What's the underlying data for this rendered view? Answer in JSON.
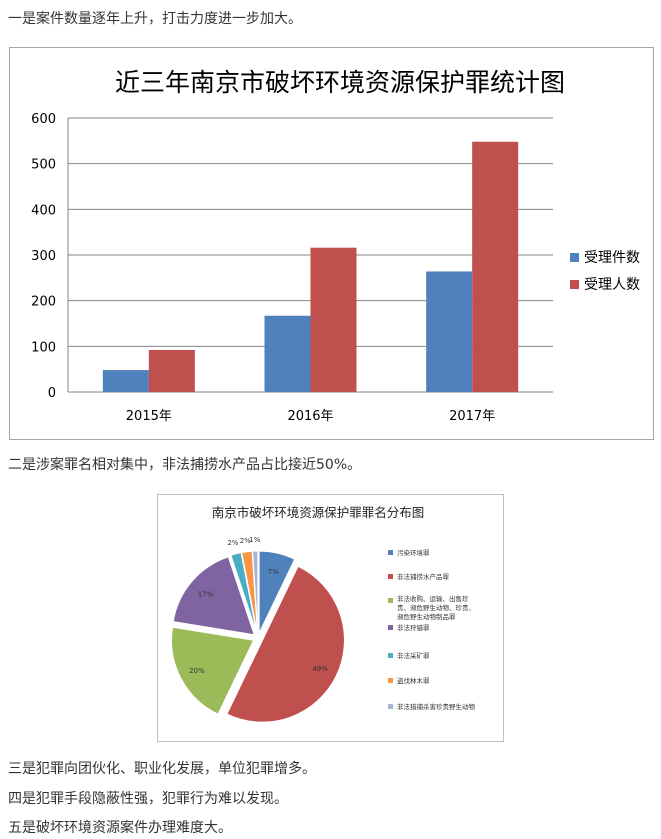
{
  "paragraphs": {
    "p1": "一是案件数量逐年上升，打击力度进一步加大。",
    "p2": "二是涉案罪名相对集中，非法捕捞水产品占比接近50%。",
    "p3": "三是犯罪向团伙化、职业化发展，单位犯罪增多。",
    "p4": "四是犯罪手段隐蔽性强，犯罪行为难以发现。",
    "p5": "五是破坏环境资源案件办理难度大。"
  },
  "chart_data": [
    {
      "type": "bar",
      "title": "近三年南京市破坏环境资源保护罪统计图",
      "categories": [
        "2015年",
        "2016年",
        "2017年"
      ],
      "series": [
        {
          "name": "受理件数",
          "values": [
            48,
            167,
            264
          ],
          "color": "#4f81bd"
        },
        {
          "name": "受理人数",
          "values": [
            92,
            316,
            548
          ],
          "color": "#c0504d"
        }
      ],
      "ylim": [
        0,
        600
      ],
      "yticks": [
        0,
        100,
        200,
        300,
        400,
        500,
        600
      ],
      "grid": true,
      "legend": "right"
    },
    {
      "type": "pie",
      "title": "南京市破坏环境资源保护罪罪名分布图",
      "slices": [
        {
          "name": "污染环境罪",
          "value": 7,
          "label": "7%",
          "color": "#4f81bd"
        },
        {
          "name": "非法捕捞水产品罪",
          "value": 49,
          "label": "49%",
          "color": "#c0504d"
        },
        {
          "name": "非法收购、运输、出售珍贵、濒危野生动物、珍贵、濒危野生动物制品罪",
          "value": 20,
          "label": "20%",
          "color": "#9bbb59"
        },
        {
          "name": "非法狩猎罪",
          "value": 17,
          "label": "17%",
          "color": "#8064a2"
        },
        {
          "name": "非法采矿罪",
          "value": 2,
          "label": "2%",
          "color": "#4bacc6"
        },
        {
          "name": "盗伐林木罪",
          "value": 2,
          "label": "2%",
          "color": "#f79646"
        },
        {
          "name": "非法猎捕杀害珍贵野生动物",
          "value": 1,
          "label": "1%",
          "color": "#a6b5d7"
        }
      ],
      "legend": "right"
    }
  ]
}
